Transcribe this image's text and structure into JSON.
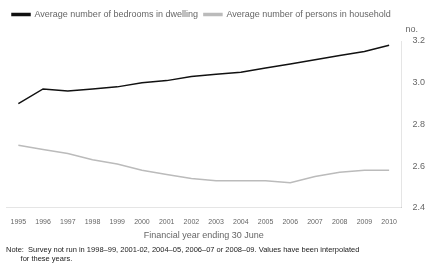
{
  "chart_data": {
    "type": "line",
    "x": [
      1995,
      1996,
      1997,
      1998,
      1999,
      2000,
      2001,
      2002,
      2003,
      2004,
      2005,
      2006,
      2007,
      2008,
      2009,
      2010
    ],
    "series": [
      {
        "name": "Average number of bedrooms in dwelling",
        "color": "#111111",
        "values": [
          2.9,
          2.97,
          2.96,
          2.97,
          2.98,
          3.0,
          3.01,
          3.03,
          3.04,
          3.05,
          3.07,
          3.09,
          3.11,
          3.13,
          3.15,
          3.18
        ]
      },
      {
        "name": "Average number of persons in household",
        "color": "#bbbbbb",
        "values": [
          2.7,
          2.68,
          2.66,
          2.63,
          2.61,
          2.58,
          2.56,
          2.54,
          2.53,
          2.53,
          2.53,
          2.52,
          2.55,
          2.57,
          2.58,
          2.58
        ]
      }
    ],
    "xlabel": "Financial year ending 30 June",
    "ylabel": "no.",
    "annotations": [
      "Note:  Survey not run in 1998–99, 2001-02, 2004–05, 2006–07 or 2008–09. Values have been interpolated",
      "       for these years."
    ],
    "xlim": [
      1994.5,
      2010.5
    ],
    "xticks": [
      1995,
      1996,
      1997,
      1998,
      1999,
      2000,
      2001,
      2002,
      2003,
      2004,
      2005,
      2006,
      2007,
      2008,
      2009,
      2010
    ],
    "ylim": [
      2.4,
      3.2
    ],
    "yticks": [
      2.4,
      2.6,
      2.8,
      {
        "value": 3.0,
        "label": "3.0"
      },
      3.2
    ],
    "grid": false,
    "legend": "upper left"
  }
}
